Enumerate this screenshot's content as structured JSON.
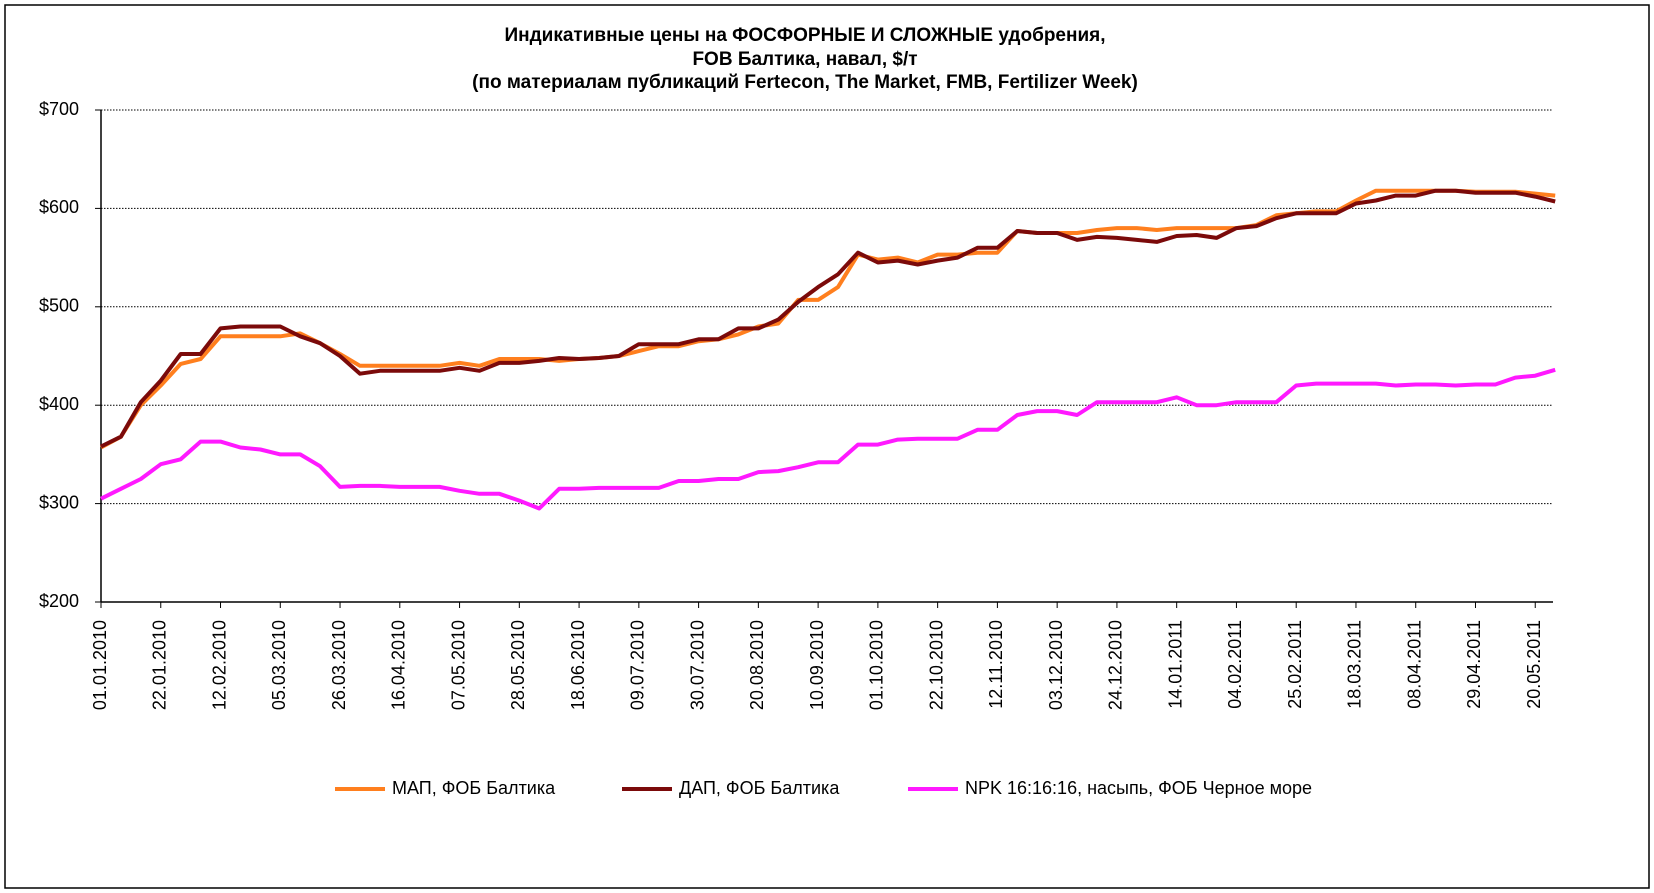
{
  "chart_data": {
    "type": "line",
    "title": [
      "Индикативные цены на ФОСФОРНЫЕ И СЛОЖНЫЕ удобрения,",
      "FOB Балтика, навал, $/т",
      "(по материалам публикаций Fertecon, The Market, FMB, Fertilizer Week)"
    ],
    "categories": [
      "01.01.2010",
      null,
      null,
      "22.01.2010",
      null,
      null,
      "12.02.2010",
      null,
      null,
      "05.03.2010",
      null,
      null,
      "26.03.2010",
      null,
      null,
      "16.04.2010",
      null,
      null,
      "07.05.2010",
      null,
      null,
      "28.05.2010",
      null,
      null,
      "18.06.2010",
      null,
      null,
      "09.07.2010",
      null,
      null,
      "30.07.2010",
      null,
      null,
      "20.08.2010",
      null,
      null,
      "10.09.2010",
      null,
      null,
      "01.10.2010",
      null,
      null,
      "22.10.2010",
      null,
      null,
      "12.11.2010",
      null,
      null,
      "03.12.2010",
      null,
      null,
      "24.12.2010",
      null,
      null,
      "14.01.2011",
      null,
      null,
      "04.02.2011",
      null,
      null,
      "25.02.2011",
      null,
      null,
      "18.03.2011",
      null,
      null,
      "08.04.2011",
      null,
      null,
      "29.04.2011",
      null,
      null,
      "20.05.2011",
      null
    ],
    "series": [
      {
        "name": "МАП, ФОБ Балтика",
        "color": "#ff7f1e",
        "values": [
          357,
          368,
          400,
          420,
          442,
          447,
          470,
          470,
          470,
          470,
          473,
          463,
          452,
          440,
          440,
          440,
          440,
          440,
          443,
          440,
          447,
          447,
          447,
          445,
          447,
          448,
          450,
          455,
          460,
          460,
          465,
          467,
          472,
          480,
          483,
          507,
          507,
          520,
          553,
          548,
          550,
          545,
          553,
          553,
          555,
          555,
          577,
          575,
          575,
          575,
          578,
          580,
          580,
          578,
          580,
          580,
          580,
          580,
          583,
          593,
          595,
          597,
          597,
          608,
          618,
          618,
          618,
          618,
          618,
          617,
          617,
          617,
          615,
          613
        ]
      },
      {
        "name": "ДАП, ФОБ Балтика",
        "color": "#7b0a0a",
        "values": [
          358,
          368,
          403,
          425,
          452,
          452,
          478,
          480,
          480,
          480,
          470,
          463,
          450,
          432,
          435,
          435,
          435,
          435,
          438,
          435,
          443,
          443,
          445,
          448,
          447,
          448,
          450,
          462,
          462,
          462,
          467,
          467,
          478,
          478,
          487,
          505,
          520,
          533,
          555,
          545,
          547,
          543,
          547,
          550,
          560,
          560,
          577,
          575,
          575,
          568,
          571,
          570,
          568,
          566,
          572,
          573,
          570,
          580,
          582,
          590,
          595,
          595,
          595,
          605,
          608,
          613,
          613,
          618,
          618,
          616,
          616,
          616,
          612,
          607
        ]
      },
      {
        "name": "NPK 16:16:16, насыпь, ФОБ Черное море",
        "color": "#ff19ff",
        "values": [
          305,
          315,
          325,
          340,
          345,
          363,
          363,
          357,
          355,
          350,
          350,
          338,
          317,
          318,
          318,
          317,
          317,
          317,
          313,
          310,
          310,
          303,
          295,
          315,
          315,
          316,
          316,
          316,
          316,
          323,
          323,
          325,
          325,
          332,
          333,
          337,
          342,
          342,
          360,
          360,
          365,
          366,
          366,
          366,
          375,
          375,
          390,
          394,
          394,
          390,
          403,
          403,
          403,
          403,
          408,
          400,
          400,
          403,
          403,
          403,
          420,
          422,
          422,
          422,
          422,
          420,
          421,
          421,
          420,
          421,
          421,
          428,
          430,
          436
        ]
      }
    ],
    "ylim": [
      200,
      700
    ],
    "yticks": [
      {
        "value": 200,
        "label": "$200"
      },
      {
        "value": 300,
        "label": "$300"
      },
      {
        "value": 400,
        "label": "$400"
      },
      {
        "value": 500,
        "label": "$500"
      },
      {
        "value": 600,
        "label": "$600"
      },
      {
        "value": 700,
        "label": "$700"
      }
    ],
    "grid": true,
    "legend": "bottom"
  }
}
